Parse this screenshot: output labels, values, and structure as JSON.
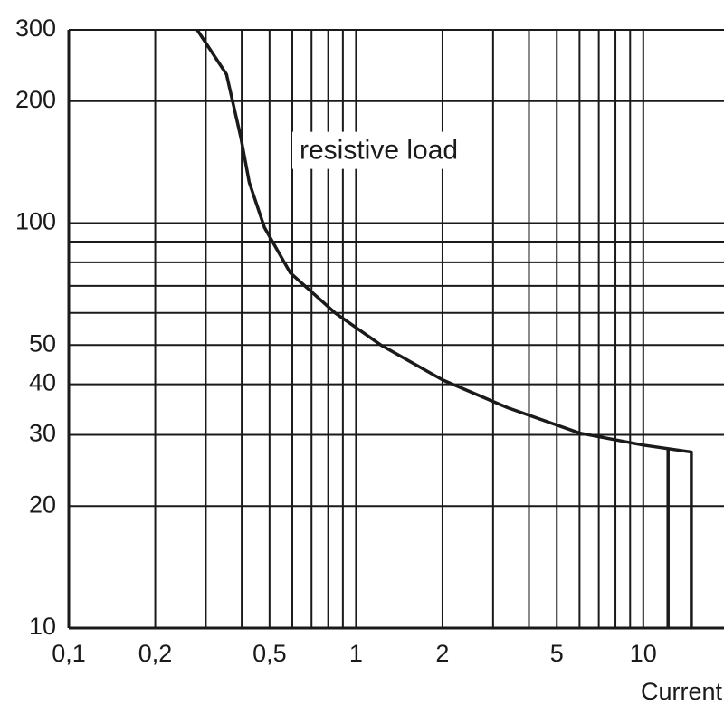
{
  "chart_data": {
    "type": "line",
    "xlabel": "Current",
    "annotations": [
      {
        "text": "resistive load",
        "x": 1.2,
        "y": 150
      }
    ],
    "xscale": "log",
    "yscale": "log",
    "xlim": [
      0.1,
      19.1
    ],
    "ylim": [
      10,
      300
    ],
    "xticks": [
      {
        "value": 0.1,
        "label": "0,1"
      },
      {
        "value": 0.2,
        "label": "0,2"
      },
      {
        "value": 0.5,
        "label": "0,5"
      },
      1,
      2,
      5,
      10
    ],
    "xgrid_minor": [
      0.3,
      0.4,
      0.6,
      0.7,
      0.8,
      0.9,
      3,
      4,
      6,
      7,
      8,
      9
    ],
    "yticks": [
      10,
      20,
      30,
      40,
      50,
      100,
      200,
      300
    ],
    "ygrid_minor": [
      60,
      70,
      80,
      90
    ],
    "grid": true,
    "series": [
      {
        "color": "#1a1a1a",
        "x": [
          0.28,
          0.354,
          0.397,
          0.425,
          0.48,
          0.59,
          0.846,
          1.22,
          2,
          3.37,
          6.0,
          10,
          14.7,
          14.7
        ],
        "values": [
          300,
          233,
          163,
          126,
          97.5,
          75.4,
          60,
          50,
          41,
          35,
          30.3,
          28.3,
          27.2,
          10
        ]
      },
      {
        "color": "#1a1a1a",
        "x": [
          12.2,
          12.2
        ],
        "values": [
          27.6,
          10
        ]
      }
    ]
  }
}
